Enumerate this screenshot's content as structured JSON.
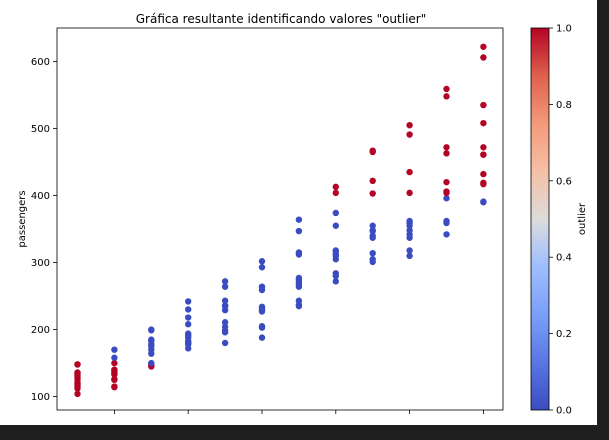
{
  "chart_data": {
    "type": "scatter",
    "title": "Gráfica resultante identificando valores \"outlier\"",
    "ylabel": "passengers",
    "xlabel": "",
    "ylim": [
      80,
      650
    ],
    "yticks": [
      "100",
      "200",
      "300",
      "400",
      "500",
      "600"
    ],
    "ytick_values": [
      100,
      200,
      300,
      400,
      500,
      600
    ],
    "x_categories": 12,
    "grid": false,
    "points_blue_color": "#3b4cc0",
    "points_red_color": "#b40426",
    "colorbar": {
      "label": "outlier",
      "colormap": "coolwarm",
      "ticks": [
        "0.0",
        "0.2",
        "0.4",
        "0.6",
        "0.8",
        "1.0"
      ],
      "tick_values": [
        0.0,
        0.2,
        0.4,
        0.6,
        0.8,
        1.0
      ]
    },
    "groups": [
      {
        "x": 0,
        "points": [
          [
            104,
            1
          ],
          [
            112,
            1
          ],
          [
            115,
            1
          ],
          [
            118,
            1
          ],
          [
            121,
            1
          ],
          [
            126,
            1
          ],
          [
            129,
            1
          ],
          [
            132,
            1
          ],
          [
            135,
            1
          ],
          [
            136,
            1
          ],
          [
            148,
            1
          ],
          [
            148,
            1
          ]
        ]
      },
      {
        "x": 1,
        "points": [
          [
            114,
            1
          ],
          [
            115,
            1
          ],
          [
            125,
            1
          ],
          [
            126,
            1
          ],
          [
            133,
            1
          ],
          [
            135,
            1
          ],
          [
            137,
            1
          ],
          [
            140,
            1
          ],
          [
            140,
            1
          ],
          [
            150,
            1
          ],
          [
            158,
            0
          ],
          [
            170,
            0
          ]
        ]
      },
      {
        "x": 2,
        "points": [
          [
            145,
            1
          ],
          [
            147,
            1
          ],
          [
            148,
            1
          ],
          [
            150,
            0
          ],
          [
            164,
            0
          ],
          [
            170,
            0
          ],
          [
            175,
            0
          ],
          [
            178,
            0
          ],
          [
            183,
            0
          ],
          [
            185,
            0
          ],
          [
            199,
            0
          ],
          [
            200,
            0
          ]
        ]
      },
      {
        "x": 3,
        "points": [
          [
            172,
            0
          ],
          [
            178,
            0
          ],
          [
            180,
            0
          ],
          [
            180,
            0
          ],
          [
            183,
            0
          ],
          [
            188,
            0
          ],
          [
            191,
            0
          ],
          [
            194,
            0
          ],
          [
            208,
            0
          ],
          [
            218,
            0
          ],
          [
            230,
            0
          ],
          [
            242,
            0
          ]
        ]
      },
      {
        "x": 4,
        "points": [
          [
            180,
            0
          ],
          [
            196,
            0
          ],
          [
            199,
            0
          ],
          [
            204,
            0
          ],
          [
            211,
            0
          ],
          [
            229,
            0
          ],
          [
            235,
            0
          ],
          [
            235,
            0
          ],
          [
            236,
            0
          ],
          [
            243,
            0
          ],
          [
            264,
            0
          ],
          [
            272,
            0
          ]
        ]
      },
      {
        "x": 5,
        "points": [
          [
            188,
            0
          ],
          [
            203,
            0
          ],
          [
            205,
            0
          ],
          [
            227,
            0
          ],
          [
            229,
            0
          ],
          [
            232,
            0
          ],
          [
            234,
            0
          ],
          [
            259,
            0
          ],
          [
            263,
            0
          ],
          [
            264,
            0
          ],
          [
            293,
            0
          ],
          [
            302,
            0
          ]
        ]
      },
      {
        "x": 6,
        "points": [
          [
            235,
            0
          ],
          [
            237,
            0
          ],
          [
            243,
            0
          ],
          [
            264,
            0
          ],
          [
            267,
            0
          ],
          [
            270,
            0
          ],
          [
            274,
            0
          ],
          [
            277,
            0
          ],
          [
            312,
            0
          ],
          [
            315,
            0
          ],
          [
            347,
            0
          ],
          [
            364,
            0
          ]
        ]
      },
      {
        "x": 7,
        "points": [
          [
            272,
            0
          ],
          [
            280,
            0
          ],
          [
            284,
            0
          ],
          [
            305,
            0
          ],
          [
            310,
            0
          ],
          [
            313,
            0
          ],
          [
            317,
            0
          ],
          [
            318,
            0
          ],
          [
            355,
            0
          ],
          [
            374,
            0
          ],
          [
            404,
            1
          ],
          [
            413,
            1
          ]
        ]
      },
      {
        "x": 8,
        "points": [
          [
            301,
            0
          ],
          [
            305,
            0
          ],
          [
            314,
            0
          ],
          [
            337,
            0
          ],
          [
            340,
            0
          ],
          [
            347,
            0
          ],
          [
            348,
            0
          ],
          [
            355,
            0
          ],
          [
            403,
            1
          ],
          [
            422,
            1
          ],
          [
            465,
            1
          ],
          [
            467,
            1
          ]
        ]
      },
      {
        "x": 9,
        "points": [
          [
            310,
            0
          ],
          [
            318,
            0
          ],
          [
            337,
            0
          ],
          [
            342,
            0
          ],
          [
            348,
            0
          ],
          [
            355,
            0
          ],
          [
            359,
            0
          ],
          [
            362,
            0
          ],
          [
            404,
            1
          ],
          [
            435,
            1
          ],
          [
            491,
            1
          ],
          [
            505,
            1
          ]
        ]
      },
      {
        "x": 10,
        "points": [
          [
            342,
            0
          ],
          [
            359,
            0
          ],
          [
            362,
            0
          ],
          [
            396,
            0
          ],
          [
            404,
            1
          ],
          [
            406,
            1
          ],
          [
            420,
            1
          ],
          [
            463,
            1
          ],
          [
            472,
            1
          ],
          [
            548,
            1
          ],
          [
            559,
            1
          ]
        ]
      },
      {
        "x": 11,
        "points": [
          [
            390,
            0
          ],
          [
            391,
            0
          ],
          [
            417,
            1
          ],
          [
            419,
            1
          ],
          [
            432,
            1
          ],
          [
            461,
            1
          ],
          [
            461,
            1
          ],
          [
            472,
            1
          ],
          [
            508,
            1
          ],
          [
            535,
            1
          ],
          [
            606,
            1
          ],
          [
            622,
            1
          ]
        ]
      }
    ]
  }
}
